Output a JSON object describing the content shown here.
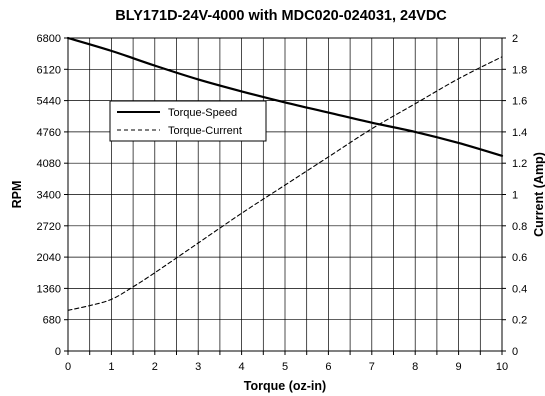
{
  "chart_data": {
    "type": "line",
    "title": "BLY171D-24V-4000 with MDC020-024031, 24VDC",
    "xlabel": "Torque (oz-in)",
    "ylabel": "RPM",
    "y2label": "Current (Amp)",
    "xlim": [
      0,
      10
    ],
    "ylim": [
      0,
      6800
    ],
    "y2lim": [
      0,
      2
    ],
    "x_ticks": [
      "0",
      "1",
      "2",
      "3",
      "4",
      "5",
      "6",
      "7",
      "8",
      "9",
      "10"
    ],
    "y_ticks": [
      "0",
      "680",
      "1360",
      "2040",
      "2720",
      "3400",
      "4080",
      "4760",
      "5440",
      "6120",
      "6800"
    ],
    "y2_ticks": [
      "0",
      "0.2",
      "0.4",
      "0.6",
      "0.8",
      "1",
      "1.2",
      "1.4",
      "1.6",
      "1.8",
      "2"
    ],
    "grid": true,
    "legend_position": "upper-left",
    "series": [
      {
        "name": "Torque-Speed",
        "axis": "left",
        "style": "solid",
        "color": "#000000",
        "x": [
          0,
          1,
          2,
          3,
          4,
          5,
          6,
          7,
          8,
          9,
          10
        ],
        "y": [
          6800,
          6520,
          6200,
          5900,
          5640,
          5400,
          5180,
          4960,
          4760,
          4520,
          4240
        ]
      },
      {
        "name": "Torque-Current",
        "axis": "right",
        "style": "dashed",
        "color": "#000000",
        "x": [
          0,
          0.5,
          1,
          1.5,
          2,
          3,
          4,
          5,
          6,
          7,
          8,
          9,
          10
        ],
        "y": [
          0.26,
          0.29,
          0.33,
          0.41,
          0.5,
          0.69,
          0.88,
          1.06,
          1.24,
          1.42,
          1.58,
          1.74,
          1.88
        ]
      }
    ]
  }
}
